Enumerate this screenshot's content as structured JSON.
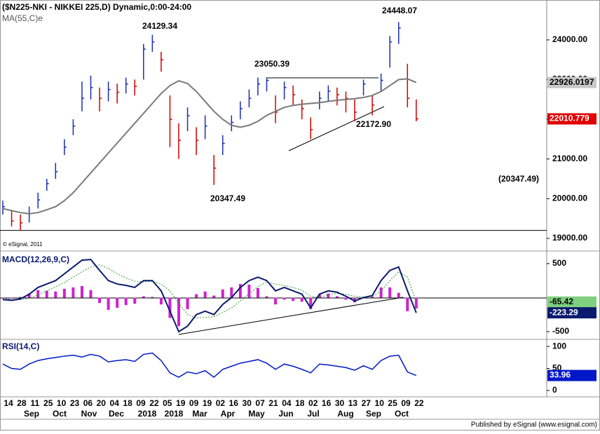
{
  "chart_data": [
    {
      "type": "ohlc",
      "title": "($N225-NKI - NIKKEI 225,D) Dynamic,0:00-24:00",
      "copyright": "© eSignal, 2011",
      "footer": "Published by eSignal (www.esignal.com)",
      "x_labels": [
        "14",
        "28",
        "11",
        "25",
        "10",
        "23",
        "06",
        "20",
        "04",
        "18",
        "09",
        "22",
        "05",
        "19",
        "09",
        "19",
        "02",
        "16",
        "30",
        "07",
        "21",
        "04",
        "18",
        "02",
        "16",
        "30",
        "13",
        "27",
        "10",
        "25",
        "09",
        "22"
      ],
      "month_labels": [
        "Sep",
        "Oct",
        "Nov",
        "Dec",
        "2018",
        "2018",
        "Mar",
        "Apr",
        "May",
        "Jun",
        "Jul",
        "Aug",
        "Sep",
        "Oct"
      ],
      "high": [
        19950,
        19700,
        19600,
        19800,
        20150,
        20500,
        20900,
        21500,
        22000,
        22950,
        23100,
        22800,
        22950,
        22900,
        23050,
        23000,
        23900,
        24129.34,
        23700,
        22600,
        21900,
        22300,
        21800,
        22100,
        21100,
        21600,
        22100,
        22450,
        22750,
        23050.39,
        23050,
        22600,
        22950,
        22850,
        22500,
        22050,
        22700,
        22850,
        22800,
        22700,
        22500,
        23000,
        22600,
        23150,
        24100,
        24448.07,
        23400,
        22500
      ],
      "low": [
        19600,
        19300,
        19200,
        19400,
        19750,
        20200,
        20500,
        21100,
        21600,
        22200,
        22500,
        22200,
        22450,
        22400,
        22650,
        22600,
        23000,
        23700,
        23200,
        21300,
        21000,
        21700,
        21100,
        21500,
        20347.49,
        21100,
        21700,
        22000,
        22300,
        22600,
        22700,
        21900,
        22500,
        22350,
        22000,
        21500,
        22250,
        22450,
        22350,
        22172.9,
        21950,
        22600,
        22100,
        22700,
        23300,
        23900,
        22300,
        21950
      ],
      "close": [
        19800,
        19440,
        19390,
        19620,
        19970,
        20380,
        20680,
        21300,
        21830,
        22530,
        22800,
        22530,
        22750,
        22680,
        22890,
        22830,
        23770,
        23950,
        23500,
        22000,
        21470,
        22090,
        21470,
        21830,
        20770,
        21390,
        21920,
        22270,
        22530,
        22890,
        22980,
        22180,
        22800,
        22620,
        22270,
        21740,
        22530,
        22710,
        22620,
        22530,
        22180,
        22890,
        22360,
        22980,
        23950,
        24300,
        22530,
        22010.779
      ],
      "color_up": "#1a2fb0",
      "color_down": "#d00000",
      "series": [
        {
          "name": "MA(55,C)e",
          "color": "#7a7a7a",
          "values": [
            19750,
            19700,
            19650,
            19620,
            19650,
            19720,
            19800,
            19950,
            20150,
            20400,
            20650,
            20900,
            21150,
            21400,
            21650,
            21900,
            22150,
            22400,
            22650,
            22850,
            22970,
            22900,
            22700,
            22450,
            22200,
            22000,
            21850,
            21800,
            21850,
            21950,
            22100,
            22200,
            22300,
            22350,
            22380,
            22400,
            22420,
            22450,
            22480,
            22500,
            22520,
            22550,
            22600,
            22700,
            22850,
            23000,
            23020,
            22926.0197
          ]
        }
      ],
      "annotations": [
        "24129.34",
        "23050.39",
        "24448.07",
        "22172.90",
        "20347.49",
        "(20347.49)"
      ],
      "ylim": [
        18735,
        24970
      ],
      "yticks": [
        {
          "value": 24000,
          "label": "24000.00"
        },
        {
          "value": 23000,
          "label": "23000.00"
        },
        {
          "value": 22000,
          "label": "22000.00"
        },
        {
          "value": 21000,
          "label": "21000.00"
        },
        {
          "value": 20000,
          "label": "20000.00"
        },
        {
          "value": 19000,
          "label": "19000.00"
        }
      ]
    },
    {
      "type": "macd",
      "title": "MACD(12,26,9,C)",
      "macd": {
        "color": "#0a1a6e",
        "values": [
          -30,
          -40,
          -20,
          50,
          150,
          200,
          250,
          350,
          450,
          550,
          560,
          400,
          250,
          200,
          180,
          150,
          250,
          250,
          100,
          -200,
          -500,
          -420,
          -250,
          -200,
          -250,
          -100,
          0,
          150,
          250,
          300,
          250,
          100,
          150,
          100,
          50,
          -150,
          50,
          100,
          80,
          20,
          -50,
          0,
          30,
          250,
          400,
          450,
          100,
          -223.29
        ]
      },
      "signal": {
        "color": "#2e9a2e",
        "values": [
          -10,
          -25,
          -30,
          -10,
          40,
          100,
          160,
          220,
          300,
          380,
          450,
          480,
          430,
          350,
          290,
          240,
          230,
          240,
          200,
          100,
          -80,
          -250,
          -300,
          -290,
          -280,
          -220,
          -150,
          -50,
          60,
          160,
          230,
          200,
          180,
          150,
          110,
          20,
          0,
          40,
          60,
          50,
          20,
          10,
          15,
          100,
          250,
          380,
          300,
          -65.42
        ]
      },
      "histogram": {
        "color": "#d020d0",
        "values": [
          -20,
          -15,
          10,
          60,
          110,
          100,
          90,
          130,
          150,
          170,
          110,
          -80,
          -180,
          -150,
          -110,
          -90,
          20,
          10,
          -100,
          -300,
          -420,
          -170,
          50,
          90,
          30,
          120,
          150,
          200,
          190,
          140,
          20,
          -100,
          -30,
          -50,
          -60,
          -170,
          50,
          60,
          20,
          -30,
          -70,
          -10,
          15,
          150,
          150,
          70,
          -200,
          -160
        ]
      },
      "ylim": [
        -593,
        613
      ],
      "yticks": [
        500,
        -500
      ]
    },
    {
      "type": "rsi",
      "title": "RSI(14,C)",
      "color": "#0018c8",
      "values": [
        60,
        50,
        48,
        60,
        68,
        72,
        75,
        78,
        80,
        76,
        82,
        78,
        65,
        68,
        70,
        66,
        82,
        85,
        68,
        40,
        30,
        42,
        38,
        45,
        30,
        48,
        55,
        62,
        66,
        70,
        62,
        48,
        60,
        55,
        48,
        40,
        60,
        58,
        55,
        52,
        46,
        56,
        48,
        68,
        78,
        80,
        42,
        33.96
      ],
      "ylim": [
        -13,
        113
      ],
      "yticks": [
        100,
        50,
        0
      ]
    }
  ]
}
